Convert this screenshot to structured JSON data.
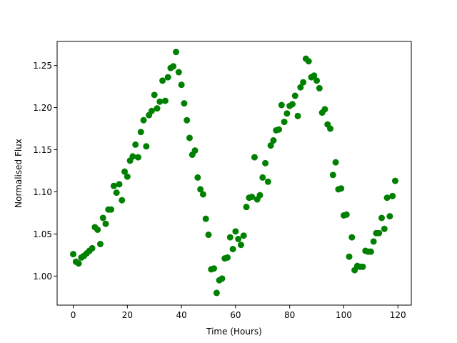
{
  "chart_data": {
    "type": "scatter",
    "title": "",
    "xlabel": "Time (Hours)",
    "ylabel": "Normalised Flux",
    "xlim": [
      -5.95,
      124.95
    ],
    "ylim": [
      0.9655,
      1.2785
    ],
    "xticks": [
      0,
      20,
      40,
      60,
      80,
      100,
      120
    ],
    "yticks": [
      1.0,
      1.05,
      1.1,
      1.15,
      1.2,
      1.25
    ],
    "xtick_labels": [
      "0",
      "20",
      "40",
      "60",
      "80",
      "100",
      "120"
    ],
    "ytick_labels": [
      "1.00",
      "1.05",
      "1.10",
      "1.15",
      "1.20",
      "1.25"
    ],
    "grid": false,
    "legend": "none",
    "marker_color": "#008000",
    "series": [
      {
        "x": [
          0,
          1,
          2,
          3,
          4,
          5,
          6,
          7,
          8,
          9,
          10,
          11,
          12,
          13,
          14,
          15,
          16,
          17,
          18,
          19,
          20,
          21,
          22,
          23,
          24,
          25,
          26,
          27,
          28,
          29,
          30,
          31,
          32,
          33,
          34,
          35,
          36,
          37,
          38,
          39,
          40,
          41,
          42,
          43,
          44,
          45,
          46,
          47,
          48,
          49,
          50,
          51,
          52,
          53,
          54,
          55,
          56,
          57,
          58,
          59,
          60,
          61,
          62,
          63,
          64,
          65,
          66,
          67,
          68,
          69,
          70,
          71,
          72,
          73,
          74,
          75,
          76,
          77,
          78,
          79,
          80,
          81,
          82,
          83,
          84,
          85,
          86,
          87,
          88,
          89,
          90,
          91,
          92,
          93,
          94,
          95,
          96,
          97,
          98,
          99,
          100,
          101,
          102,
          103,
          104,
          105,
          106,
          107,
          108,
          109,
          110,
          111,
          112,
          113,
          114,
          115,
          116,
          117,
          118,
          119
        ],
        "y": [
          1.026,
          1.017,
          1.015,
          1.022,
          1.024,
          1.027,
          1.03,
          1.033,
          1.058,
          1.055,
          1.038,
          1.069,
          1.062,
          1.079,
          1.079,
          1.107,
          1.099,
          1.109,
          1.09,
          1.124,
          1.118,
          1.137,
          1.142,
          1.156,
          1.141,
          1.171,
          1.185,
          1.154,
          1.191,
          1.196,
          1.215,
          1.199,
          1.207,
          1.232,
          1.208,
          1.236,
          1.247,
          1.249,
          1.266,
          1.242,
          1.227,
          1.205,
          1.185,
          1.164,
          1.144,
          1.149,
          1.117,
          1.103,
          1.097,
          1.068,
          1.049,
          1.008,
          1.009,
          0.98,
          0.995,
          0.997,
          1.021,
          1.022,
          1.046,
          1.032,
          1.053,
          1.044,
          1.037,
          1.048,
          1.082,
          1.093,
          1.094,
          1.141,
          1.091,
          1.096,
          1.117,
          1.134,
          1.112,
          1.155,
          1.161,
          1.173,
          1.174,
          1.203,
          1.183,
          1.193,
          1.202,
          1.204,
          1.214,
          1.19,
          1.224,
          1.23,
          1.258,
          1.255,
          1.236,
          1.238,
          1.232,
          1.223,
          1.194,
          1.198,
          1.18,
          1.175,
          1.12,
          1.135,
          1.103,
          1.104,
          1.072,
          1.073,
          1.023,
          1.046,
          1.007,
          1.012,
          1.011,
          1.011,
          1.03,
          1.029,
          1.029,
          1.041,
          1.051,
          1.051,
          1.069,
          1.056,
          1.093,
          1.071,
          1.095,
          1.113
        ]
      }
    ]
  }
}
